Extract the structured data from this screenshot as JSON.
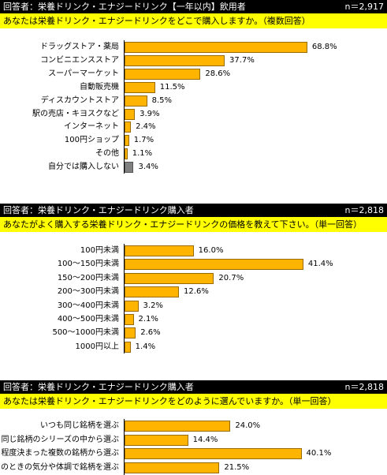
{
  "colors": {
    "bar": "#ffb400",
    "bar_other": "#808080",
    "header_bg": "#000000",
    "question_bg": "#ffff00"
  },
  "panels": [
    {
      "header": "回答者：栄養ドリンク・エナジードリンク【一年以内】飲用者",
      "n": "n＝2,917",
      "question": "あなたは栄養ドリンク・エナジードリンクをどこで購入しますか。（複数回答）"
    },
    {
      "header": "回答者：栄養ドリンク・エナジードリンク購入者",
      "n": "n＝2,818",
      "question": "あなたがよく購入する栄養ドリンク・エナジードリンクの価格を教えて下さい。（単一回答）"
    },
    {
      "header": "回答者：栄養ドリンク・エナジードリンク購入者",
      "n": "n＝2,818",
      "question": "あなたは栄養ドリンク・エナジードリンクをどのように選んでいますか。（単一回答）"
    }
  ],
  "chart_data": [
    {
      "type": "bar",
      "orientation": "horizontal",
      "categories": [
        "ドラッグストア・薬局",
        "コンビニエンスストア",
        "スーパーマーケット",
        "自動販売機",
        "ディスカウントストア",
        "駅の売店・キヨスクなど",
        "インターネット",
        "100円ショップ",
        "その他",
        "自分では購入しない"
      ],
      "values": [
        68.8,
        37.7,
        28.6,
        11.5,
        8.5,
        3.9,
        2.4,
        1.7,
        1.1,
        3.4
      ],
      "value_labels": [
        "68.8%",
        "37.7%",
        "28.6%",
        "11.5%",
        "8.5%",
        "3.9%",
        "2.4%",
        "1.7%",
        "1.1%",
        "3.4%"
      ],
      "highlight_gray_index": 9,
      "xlim": [
        0,
        100
      ]
    },
    {
      "type": "bar",
      "orientation": "horizontal",
      "categories": [
        "100円未満",
        "100～150円未満",
        "150～200円未満",
        "200～300円未満",
        "300～400円未満",
        "400～500円未満",
        "500～1000円未満",
        "1000円以上"
      ],
      "values": [
        16.0,
        41.4,
        20.7,
        12.6,
        3.2,
        2.1,
        2.6,
        1.4
      ],
      "value_labels": [
        "16.0%",
        "41.4%",
        "20.7%",
        "12.6%",
        "3.2%",
        "2.1%",
        "2.6%",
        "1.4%"
      ],
      "xlim": [
        0,
        100
      ]
    },
    {
      "type": "bar",
      "orientation": "horizontal",
      "categories": [
        "いつも同じ銘柄を選ぶ",
        "同じ銘柄のシリーズの中から選ぶ",
        "ある程度決まった複数の銘柄から選ぶ",
        "そのときの気分や体調で銘柄を選ぶ"
      ],
      "values": [
        24.0,
        14.4,
        40.1,
        21.5
      ],
      "value_labels": [
        "24.0%",
        "14.4%",
        "40.1%",
        "21.5%"
      ],
      "xlim": [
        0,
        100
      ]
    }
  ]
}
